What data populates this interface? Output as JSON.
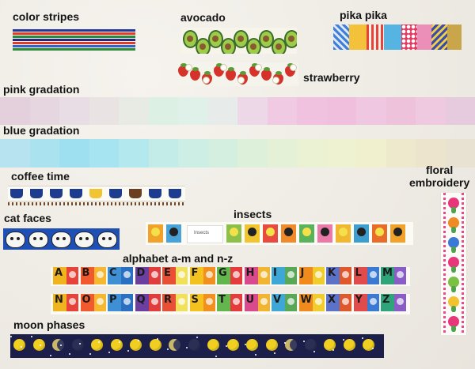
{
  "labels": {
    "color_stripes": "color stripes",
    "avocado": "avocado",
    "pika_pika": "pika pika",
    "strawberry": "strawberry",
    "pink_gradation": "pink gradation",
    "blue_gradation": "blue gradation",
    "coffee_time": "coffee time",
    "floral_line1": "floral",
    "floral_line2": "embroidery",
    "cat_faces": "cat faces",
    "insects": "insects",
    "alphabet": "alphabet a-m and n-z",
    "moon_phases": "moon phases"
  },
  "tape_text": {
    "insects_title": "Insects"
  },
  "alphabet_am": [
    "A",
    "B",
    "C",
    "D",
    "E",
    "F",
    "G",
    "H",
    "I",
    "J",
    "K",
    "L",
    "M"
  ],
  "alphabet_nz": [
    "N",
    "O",
    "P",
    "Q",
    "R",
    "S",
    "T",
    "U",
    "V",
    "W",
    "X",
    "Y",
    "Z"
  ],
  "colors": {
    "stripes": [
      "#1f3b9b",
      "#e43a2c",
      "#2b8a3e",
      "#232c7a",
      "#e43a2c",
      "#3262c6",
      "#2e8b3a"
    ],
    "pink_gradation": [
      "#e4d0dc",
      "#e6d6e0",
      "#e8dde4",
      "#e9e3e3",
      "#e7ebe4",
      "#dcf0e4",
      "#dff1e8",
      "#e7ecea",
      "#edd8e8",
      "#f0c9e2",
      "#f1c2df",
      "#efbfdd",
      "#f0c7e0",
      "#eec2da",
      "#efc9df",
      "#e6cbde"
    ],
    "blue_gradation": [
      "#b6e3ef",
      "#abe2f0",
      "#9fe0f0",
      "#a7e4f1",
      "#b4e8ef",
      "#c3ece9",
      "#cdeee4",
      "#d4efdf",
      "#dcf0da",
      "#e4f1d6",
      "#ebf2d3",
      "#eff2d1",
      "#f0f0cf",
      "#eee9cc",
      "#ece4cc",
      "#e8e2d2"
    ],
    "alphabet_bg": [
      "#f0b51e",
      "#f05a2e",
      "#3e8fd4",
      "#6a3fa0",
      "#e94f35",
      "#f3c21f",
      "#63b64d",
      "#d84a8b",
      "#3fa7d6",
      "#f08a1c",
      "#5c72c7",
      "#e24b4b",
      "#2fa37a"
    ],
    "alphabet_fg": [
      "#e8433a",
      "#f5b82e",
      "#2a6fc2",
      "#e23d3d",
      "#f0e05a",
      "#f18f1f",
      "#e43c3c",
      "#f2b531",
      "#57a857",
      "#f0cc2c",
      "#e0592d",
      "#3b7ad3",
      "#8a5cc7"
    ],
    "insect_bg": [
      "#f2a12a",
      "#4aa3d8",
      "#8cc04a",
      "#f0c530",
      "#e94a3f",
      "#f08a2b",
      "#59b35a",
      "#ec7aa8",
      "#f2b730",
      "#3d9fd0",
      "#e86b2a"
    ],
    "moon_bg": "#1c1f4a"
  }
}
